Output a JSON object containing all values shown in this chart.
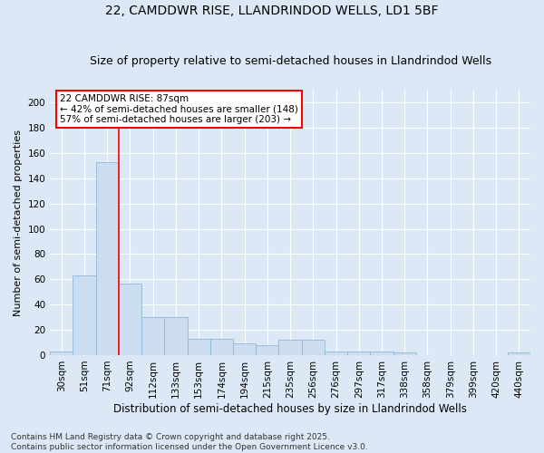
{
  "title1": "22, CAMDDWR RISE, LLANDRINDOD WELLS, LD1 5BF",
  "title2": "Size of property relative to semi-detached houses in Llandrindod Wells",
  "xlabel": "Distribution of semi-detached houses by size in Llandrindod Wells",
  "ylabel": "Number of semi-detached properties",
  "categories": [
    "30sqm",
    "51sqm",
    "71sqm",
    "92sqm",
    "112sqm",
    "133sqm",
    "153sqm",
    "174sqm",
    "194sqm",
    "215sqm",
    "235sqm",
    "256sqm",
    "276sqm",
    "297sqm",
    "317sqm",
    "338sqm",
    "358sqm",
    "379sqm",
    "399sqm",
    "420sqm",
    "440sqm"
  ],
  "values": [
    3,
    63,
    153,
    57,
    30,
    30,
    13,
    13,
    9,
    8,
    12,
    12,
    3,
    3,
    3,
    2,
    0,
    0,
    0,
    0,
    2
  ],
  "bar_color": "#ccddf0",
  "bar_edge_color": "#90b8d8",
  "vline_color": "red",
  "vline_position": 2.5,
  "annotation_title": "22 CAMDDWR RISE: 87sqm",
  "annotation_line1": "← 42% of semi-detached houses are smaller (148)",
  "annotation_line2": "57% of semi-detached houses are larger (203) →",
  "ylim": [
    0,
    210
  ],
  "yticks": [
    0,
    20,
    40,
    60,
    80,
    100,
    120,
    140,
    160,
    180,
    200
  ],
  "background_color": "#dce8f5",
  "footer_line1": "Contains HM Land Registry data © Crown copyright and database right 2025.",
  "footer_line2": "Contains public sector information licensed under the Open Government Licence v3.0.",
  "title1_fontsize": 10,
  "title2_fontsize": 9,
  "xlabel_fontsize": 8.5,
  "ylabel_fontsize": 8,
  "tick_fontsize": 7.5,
  "annotation_fontsize": 7.5,
  "footer_fontsize": 6.5
}
